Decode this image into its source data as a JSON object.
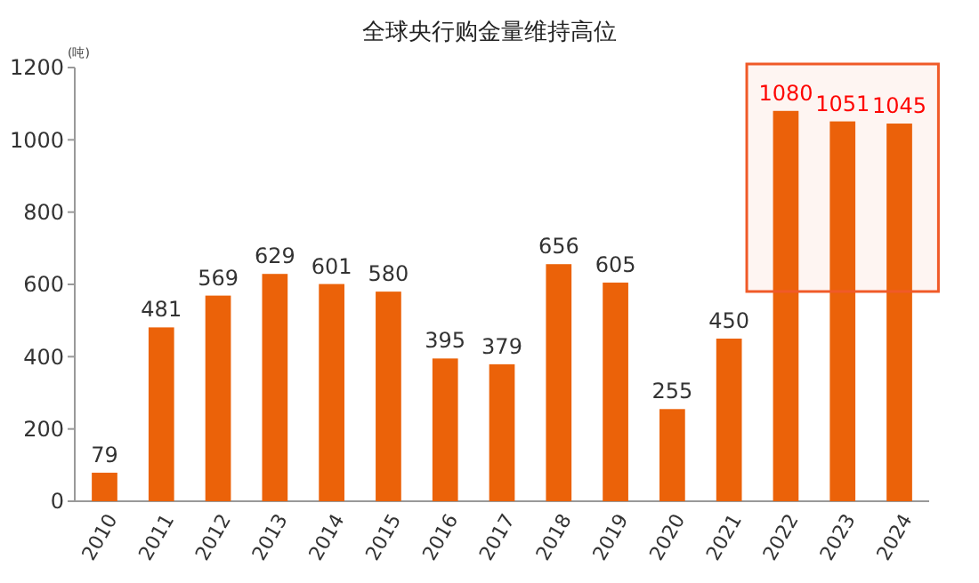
{
  "chart_data": {
    "type": "bar",
    "title": "全球央行购金量维持高位",
    "ylabel": "(吨)",
    "categories": [
      "2010",
      "2011",
      "2012",
      "2013",
      "2014",
      "2015",
      "2016",
      "2017",
      "2018",
      "2019",
      "2020",
      "2021",
      "2022",
      "2023",
      "2024"
    ],
    "values": [
      79,
      481,
      569,
      629,
      601,
      580,
      395,
      379,
      656,
      605,
      255,
      450,
      1080,
      1051,
      1045
    ],
    "color": "#eb6209",
    "ylim": [
      0,
      1200
    ],
    "yticks": [
      0,
      200,
      400,
      600,
      800,
      1000,
      1200
    ],
    "grid": false,
    "data_labels": true,
    "bands": [
      {
        "axis": "x",
        "from": "2022",
        "to": "2024",
        "color": "#f05a28"
      }
    ]
  }
}
